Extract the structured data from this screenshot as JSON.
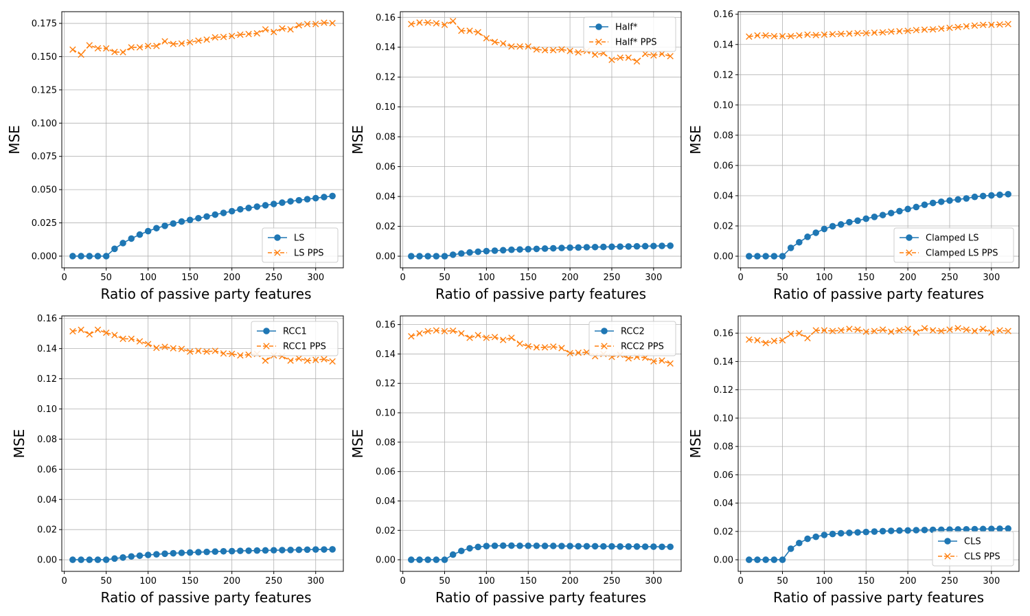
{
  "colors": {
    "method": "#1f77b4",
    "pps": "#ff7f0e",
    "grid": "#b0b0b0",
    "axis": "#000000"
  },
  "chart_data": [
    {
      "type": "line",
      "xlabel": "Ratio of passive party features",
      "ylabel": "MSE",
      "xlim": [
        -3,
        333
      ],
      "ylim": [
        -0.0088,
        0.1838
      ],
      "xticks": [
        0,
        50,
        100,
        150,
        200,
        250,
        300
      ],
      "xtick_labels": [
        "0",
        "50",
        "100",
        "150",
        "200",
        "250",
        "300"
      ],
      "yticks": [
        0,
        0.025,
        0.05,
        0.075,
        0.1,
        0.125,
        0.15,
        0.175
      ],
      "ytick_labels": [
        "0.000",
        "0.025",
        "0.050",
        "0.075",
        "0.100",
        "0.125",
        "0.150",
        "0.175"
      ],
      "legend_position": "bottom-right",
      "x": [
        10,
        20,
        30,
        40,
        50,
        60,
        70,
        80,
        90,
        100,
        110,
        120,
        130,
        140,
        150,
        160,
        170,
        180,
        190,
        200,
        210,
        220,
        230,
        240,
        250,
        260,
        270,
        280,
        290,
        300,
        310,
        320
      ],
      "series": [
        {
          "name": "LS",
          "marker": "circle",
          "values": [
            0,
            0,
            0,
            0,
            0,
            0.0055,
            0.0098,
            0.0132,
            0.0162,
            0.0188,
            0.021,
            0.0228,
            0.0245,
            0.026,
            0.0272,
            0.0285,
            0.0298,
            0.0312,
            0.0325,
            0.0338,
            0.0352,
            0.0362,
            0.0372,
            0.0382,
            0.0392,
            0.0402,
            0.0412,
            0.042,
            0.0428,
            0.0436,
            0.0444,
            0.0452
          ]
        },
        {
          "name": "LS PPS",
          "marker": "x",
          "values": [
            0.1553,
            0.1515,
            0.1585,
            0.1563,
            0.1562,
            0.1535,
            0.1533,
            0.157,
            0.157,
            0.158,
            0.158,
            0.1615,
            0.1595,
            0.1598,
            0.1608,
            0.162,
            0.1628,
            0.1645,
            0.1648,
            0.1655,
            0.1665,
            0.167,
            0.1675,
            0.1705,
            0.1685,
            0.1712,
            0.1705,
            0.1735,
            0.1745,
            0.1745,
            0.1755,
            0.1752
          ]
        }
      ]
    },
    {
      "type": "line",
      "xlabel": "Ratio of passive party features",
      "ylabel": "MSE",
      "xlim": [
        -3,
        333
      ],
      "ylim": [
        -0.0078,
        0.1638
      ],
      "xticks": [
        0,
        50,
        100,
        150,
        200,
        250,
        300
      ],
      "xtick_labels": [
        "0",
        "50",
        "100",
        "150",
        "200",
        "250",
        "300"
      ],
      "yticks": [
        0,
        0.02,
        0.04,
        0.06,
        0.08,
        0.1,
        0.12,
        0.14,
        0.16
      ],
      "ytick_labels": [
        "0.00",
        "0.02",
        "0.04",
        "0.06",
        "0.08",
        "0.10",
        "0.12",
        "0.14",
        "0.16"
      ],
      "legend_position": "top-right",
      "x": [
        10,
        20,
        30,
        40,
        50,
        60,
        70,
        80,
        90,
        100,
        110,
        120,
        130,
        140,
        150,
        160,
        170,
        180,
        190,
        200,
        210,
        220,
        230,
        240,
        250,
        260,
        270,
        280,
        290,
        300,
        310,
        320
      ],
      "series": [
        {
          "name": "Half*",
          "marker": "circle",
          "values": [
            0,
            0,
            0,
            0,
            0,
            0.001,
            0.0018,
            0.0025,
            0.003,
            0.0034,
            0.0037,
            0.004,
            0.0043,
            0.0045,
            0.0047,
            0.0049,
            0.0051,
            0.0053,
            0.0055,
            0.0057,
            0.0058,
            0.006,
            0.0061,
            0.0062,
            0.0063,
            0.0064,
            0.0065,
            0.0066,
            0.0067,
            0.0068,
            0.0069,
            0.007
          ]
        },
        {
          "name": "Half* PPS",
          "marker": "x",
          "values": [
            0.1555,
            0.1565,
            0.1565,
            0.156,
            0.155,
            0.1575,
            0.151,
            0.151,
            0.15,
            0.146,
            0.1435,
            0.1425,
            0.1405,
            0.1405,
            0.1405,
            0.1385,
            0.138,
            0.138,
            0.1385,
            0.1375,
            0.1365,
            0.1375,
            0.135,
            0.136,
            0.1315,
            0.133,
            0.133,
            0.1305,
            0.1355,
            0.1345,
            0.1355,
            0.134
          ]
        }
      ]
    },
    {
      "type": "line",
      "xlabel": "Ratio of passive party features",
      "ylabel": "MSE",
      "xlim": [
        -3,
        333
      ],
      "ylim": [
        -0.0077,
        0.1617
      ],
      "xticks": [
        0,
        50,
        100,
        150,
        200,
        250,
        300
      ],
      "xtick_labels": [
        "0",
        "50",
        "100",
        "150",
        "200",
        "250",
        "300"
      ],
      "yticks": [
        0,
        0.02,
        0.04,
        0.06,
        0.08,
        0.1,
        0.12,
        0.14,
        0.16
      ],
      "ytick_labels": [
        "0.00",
        "0.02",
        "0.04",
        "0.06",
        "0.08",
        "0.10",
        "0.12",
        "0.14",
        "0.16"
      ],
      "legend_position": "bottom-right",
      "x": [
        10,
        20,
        30,
        40,
        50,
        60,
        70,
        80,
        90,
        100,
        110,
        120,
        130,
        140,
        150,
        160,
        170,
        180,
        190,
        200,
        210,
        220,
        230,
        240,
        250,
        260,
        270,
        280,
        290,
        300,
        310,
        320
      ],
      "series": [
        {
          "name": "Clamped LS",
          "marker": "circle",
          "values": [
            0,
            0,
            0,
            0,
            0,
            0.0055,
            0.0092,
            0.0128,
            0.0155,
            0.018,
            0.0198,
            0.021,
            0.0225,
            0.0235,
            0.0248,
            0.026,
            0.0272,
            0.0285,
            0.0298,
            0.0312,
            0.0325,
            0.034,
            0.0352,
            0.036,
            0.0368,
            0.0375,
            0.0382,
            0.0392,
            0.0398,
            0.0402,
            0.0406,
            0.041
          ]
        },
        {
          "name": "Clamped LS PPS",
          "marker": "x",
          "values": [
            0.1452,
            0.146,
            0.146,
            0.1455,
            0.1455,
            0.1455,
            0.146,
            0.1465,
            0.1462,
            0.1465,
            0.1468,
            0.147,
            0.1472,
            0.1475,
            0.1475,
            0.1478,
            0.148,
            0.1485,
            0.1488,
            0.149,
            0.1495,
            0.1498,
            0.15,
            0.1505,
            0.151,
            0.1515,
            0.152,
            0.1525,
            0.153,
            0.153,
            0.1532,
            0.1535
          ]
        }
      ]
    },
    {
      "type": "line",
      "xlabel": "Ratio of passive party features",
      "ylabel": "MSE",
      "xlim": [
        -3,
        333
      ],
      "ylim": [
        -0.0077,
        0.1617
      ],
      "xticks": [
        0,
        50,
        100,
        150,
        200,
        250,
        300
      ],
      "xtick_labels": [
        "0",
        "50",
        "100",
        "150",
        "200",
        "250",
        "300"
      ],
      "yticks": [
        0,
        0.02,
        0.04,
        0.06,
        0.08,
        0.1,
        0.12,
        0.14,
        0.16
      ],
      "ytick_labels": [
        "0.00",
        "0.02",
        "0.04",
        "0.06",
        "0.08",
        "0.10",
        "0.12",
        "0.14",
        "0.16"
      ],
      "legend_position": "top-right",
      "x": [
        10,
        20,
        30,
        40,
        50,
        60,
        70,
        80,
        90,
        100,
        110,
        120,
        130,
        140,
        150,
        160,
        170,
        180,
        190,
        200,
        210,
        220,
        230,
        240,
        250,
        260,
        270,
        280,
        290,
        300,
        310,
        320
      ],
      "series": [
        {
          "name": "RCC1",
          "marker": "circle",
          "values": [
            0,
            0,
            0,
            0,
            0,
            0.0008,
            0.0015,
            0.0022,
            0.0027,
            0.0032,
            0.0036,
            0.004,
            0.0043,
            0.0046,
            0.0048,
            0.005,
            0.0052,
            0.0054,
            0.0056,
            0.0057,
            0.0059,
            0.006,
            0.0061,
            0.0062,
            0.0063,
            0.0064,
            0.0065,
            0.0066,
            0.0067,
            0.0068,
            0.0068,
            0.0069
          ]
        },
        {
          "name": "RCC1 PPS",
          "marker": "x",
          "values": [
            0.1515,
            0.1525,
            0.1495,
            0.1525,
            0.1505,
            0.149,
            0.1465,
            0.1465,
            0.1448,
            0.143,
            0.1405,
            0.1412,
            0.1402,
            0.1398,
            0.138,
            0.1385,
            0.138,
            0.1385,
            0.1368,
            0.1365,
            0.1355,
            0.136,
            0.1365,
            0.132,
            0.1355,
            0.135,
            0.132,
            0.1335,
            0.132,
            0.1325,
            0.133,
            0.1315
          ]
        }
      ]
    },
    {
      "type": "line",
      "xlabel": "Ratio of passive party features",
      "ylabel": "MSE",
      "xlim": [
        -3,
        333
      ],
      "ylim": [
        -0.0079,
        0.1659
      ],
      "xticks": [
        0,
        50,
        100,
        150,
        200,
        250,
        300
      ],
      "xtick_labels": [
        "0",
        "50",
        "100",
        "150",
        "200",
        "250",
        "300"
      ],
      "yticks": [
        0,
        0.02,
        0.04,
        0.06,
        0.08,
        0.1,
        0.12,
        0.14,
        0.16
      ],
      "ytick_labels": [
        "0.00",
        "0.02",
        "0.04",
        "0.06",
        "0.08",
        "0.10",
        "0.12",
        "0.14",
        "0.16"
      ],
      "legend_position": "top-right",
      "x": [
        10,
        20,
        30,
        40,
        50,
        60,
        70,
        80,
        90,
        100,
        110,
        120,
        130,
        140,
        150,
        160,
        170,
        180,
        190,
        200,
        210,
        220,
        230,
        240,
        250,
        260,
        270,
        280,
        290,
        300,
        310,
        320
      ],
      "series": [
        {
          "name": "RCC2",
          "marker": "circle",
          "values": [
            0,
            0,
            0,
            0,
            0,
            0.0035,
            0.006,
            0.0078,
            0.0087,
            0.0093,
            0.0095,
            0.0096,
            0.0096,
            0.0095,
            0.0095,
            0.0095,
            0.0094,
            0.0094,
            0.0093,
            0.0093,
            0.0092,
            0.0092,
            0.0092,
            0.0091,
            0.0091,
            0.009,
            0.009,
            0.009,
            0.0089,
            0.0089,
            0.0088,
            0.0088
          ]
        },
        {
          "name": "RCC2 PPS",
          "marker": "x",
          "values": [
            0.152,
            0.154,
            0.1555,
            0.156,
            0.1555,
            0.1558,
            0.154,
            0.151,
            0.1528,
            0.151,
            0.1515,
            0.1495,
            0.151,
            0.147,
            0.1452,
            0.1445,
            0.1445,
            0.145,
            0.144,
            0.1405,
            0.1408,
            0.1412,
            0.1385,
            0.14,
            0.138,
            0.1395,
            0.137,
            0.138,
            0.1375,
            0.135,
            0.1355,
            0.1335
          ]
        }
      ]
    },
    {
      "type": "line",
      "xlabel": "Ratio of passive party features",
      "ylabel": "MSE",
      "xlim": [
        -3,
        333
      ],
      "ylim": [
        -0.0082,
        0.1722
      ],
      "xticks": [
        0,
        50,
        100,
        150,
        200,
        250,
        300
      ],
      "xtick_labels": [
        "0",
        "50",
        "100",
        "150",
        "200",
        "250",
        "300"
      ],
      "yticks": [
        0,
        0.02,
        0.04,
        0.06,
        0.08,
        0.1,
        0.12,
        0.14,
        0.16
      ],
      "ytick_labels": [
        "0.00",
        "0.02",
        "0.04",
        "0.06",
        "0.08",
        "0.10",
        "0.12",
        "0.14",
        "0.16"
      ],
      "legend_position": "bottom-right",
      "x": [
        10,
        20,
        30,
        40,
        50,
        60,
        70,
        80,
        90,
        100,
        110,
        120,
        130,
        140,
        150,
        160,
        170,
        180,
        190,
        200,
        210,
        220,
        230,
        240,
        250,
        260,
        270,
        280,
        290,
        300,
        310,
        320
      ],
      "series": [
        {
          "name": "CLS",
          "marker": "circle",
          "values": [
            0,
            0,
            0,
            0,
            0,
            0.0078,
            0.0118,
            0.0148,
            0.0162,
            0.0175,
            0.0182,
            0.0187,
            0.019,
            0.0193,
            0.0196,
            0.0199,
            0.0202,
            0.0204,
            0.0206,
            0.0207,
            0.0209,
            0.021,
            0.0211,
            0.0212,
            0.0213,
            0.0214,
            0.0215,
            0.0216,
            0.0217,
            0.0218,
            0.0219,
            0.022
          ]
        },
        {
          "name": "CLS PPS",
          "marker": "x",
          "values": [
            0.1555,
            0.155,
            0.153,
            0.1545,
            0.155,
            0.1595,
            0.16,
            0.1565,
            0.162,
            0.162,
            0.1615,
            0.162,
            0.163,
            0.1625,
            0.161,
            0.1615,
            0.1625,
            0.161,
            0.162,
            0.163,
            0.1605,
            0.1635,
            0.162,
            0.1615,
            0.1625,
            0.1635,
            0.1625,
            0.1615,
            0.163,
            0.1605,
            0.162,
            0.1615
          ]
        }
      ]
    }
  ]
}
